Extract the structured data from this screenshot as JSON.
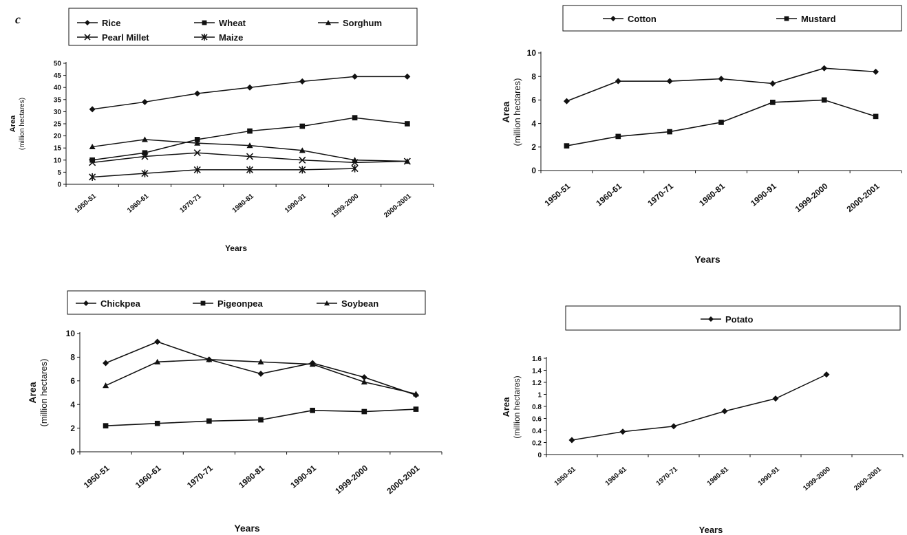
{
  "panel_letter": "c",
  "chart_data": [
    {
      "type": "line",
      "x": [
        "1950-51",
        "1960-61",
        "1970-71",
        "1980-81",
        "1990-91",
        "1999-2000",
        "2000-2001"
      ],
      "xlabel": "Years",
      "ylabel_line1": "Area",
      "ylabel_line2": "(million hectares)",
      "ylim": [
        0,
        50
      ],
      "yticks": [
        0,
        5,
        10,
        15,
        20,
        25,
        30,
        35,
        40,
        45,
        50
      ],
      "legend_placement": "top",
      "series": [
        {
          "name": "Rice",
          "marker": "diamond",
          "values": [
            31,
            34,
            37.5,
            40,
            42.5,
            44.5,
            44.5
          ]
        },
        {
          "name": "Wheat",
          "marker": "square",
          "values": [
            10,
            13,
            18.5,
            22,
            24,
            27.5,
            25
          ]
        },
        {
          "name": "Sorghum",
          "marker": "triangle",
          "values": [
            15.5,
            18.5,
            17,
            16,
            14,
            10,
            9.5
          ]
        },
        {
          "name": "Pearl Millet",
          "marker": "x",
          "values": [
            9,
            11.5,
            13,
            11.5,
            10,
            9,
            9.5
          ]
        },
        {
          "name": "Maize",
          "marker": "star",
          "values": [
            3,
            4.5,
            6,
            6,
            6,
            6.5,
            null
          ]
        }
      ]
    },
    {
      "type": "line",
      "x": [
        "1950-51",
        "1960-61",
        "1970-71",
        "1980-81",
        "1990-91",
        "1999-2000",
        "2000-2001"
      ],
      "xlabel": "Years",
      "ylabel_line1": "Area",
      "ylabel_line2": "(million hectares)",
      "ylim": [
        0,
        10
      ],
      "yticks": [
        0,
        2,
        4,
        6,
        8,
        10
      ],
      "legend_placement": "top",
      "series": [
        {
          "name": "Cotton",
          "marker": "diamond",
          "values": [
            5.9,
            7.6,
            7.6,
            7.8,
            7.4,
            8.7,
            8.4
          ]
        },
        {
          "name": "Mustard",
          "marker": "square",
          "values": [
            2.1,
            2.9,
            3.3,
            4.1,
            5.8,
            6.0,
            4.6
          ]
        }
      ]
    },
    {
      "type": "line",
      "x": [
        "1950-51",
        "1960-61",
        "1970-71",
        "1980-81",
        "1990-91",
        "1999-2000",
        "2000-2001"
      ],
      "xlabel": "Years",
      "ylabel_line1": "Area",
      "ylabel_line2": "(million hectares)",
      "ylim": [
        0,
        10
      ],
      "yticks": [
        0,
        2,
        4,
        6,
        8,
        10
      ],
      "legend_placement": "top",
      "series": [
        {
          "name": "Chickpea",
          "marker": "diamond",
          "values": [
            7.5,
            9.3,
            7.8,
            6.6,
            7.5,
            6.3,
            4.8
          ]
        },
        {
          "name": "Pigeonpea",
          "marker": "square",
          "values": [
            2.2,
            2.4,
            2.6,
            2.7,
            3.5,
            3.4,
            3.6
          ]
        },
        {
          "name": "Soybean",
          "marker": "triangle",
          "values": [
            5.6,
            7.6,
            7.8,
            7.6,
            7.4,
            5.9,
            4.9
          ]
        }
      ]
    },
    {
      "type": "line",
      "x": [
        "1950-51",
        "1960-61",
        "1970-71",
        "1980-81",
        "1990-91",
        "1999-2000",
        "2000-2001"
      ],
      "xlabel": "Years",
      "ylabel_line1": "Area",
      "ylabel_line2": "(million hectares)",
      "ylim": [
        0,
        1.6
      ],
      "yticks": [
        "0",
        "0.2",
        "0.4",
        "0.6",
        "0.8",
        "1",
        "1.2",
        "1.4",
        "1.6"
      ],
      "legend_placement": "top",
      "series": [
        {
          "name": "Potato",
          "marker": "diamond",
          "values": [
            0.24,
            0.38,
            0.47,
            0.72,
            0.93,
            1.33,
            null
          ]
        }
      ]
    }
  ]
}
